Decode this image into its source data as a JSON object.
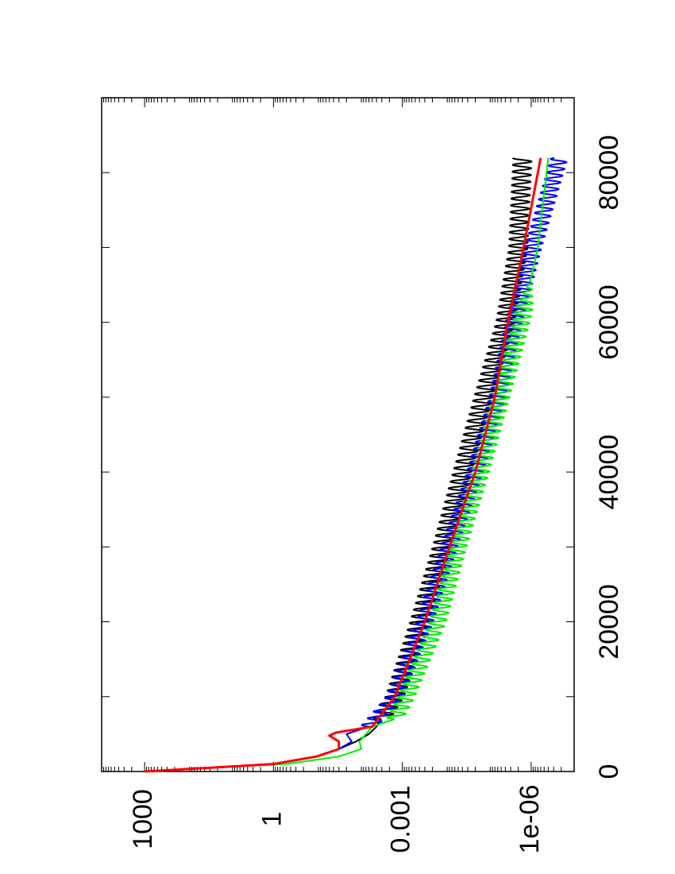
{
  "chart_data": {
    "type": "line",
    "orientation": "rotated-90-clockwise",
    "title": "",
    "xlabel": "",
    "ylabel": "",
    "xlim": [
      0,
      90000
    ],
    "ylim_log10": [
      -7,
      4
    ],
    "yscale": "log",
    "x_ticks": [
      {
        "value": 0,
        "label": "0"
      },
      {
        "value": 20000,
        "label": "20000"
      },
      {
        "value": 40000,
        "label": "40000"
      },
      {
        "value": 60000,
        "label": "60000"
      },
      {
        "value": 80000,
        "label": "80000"
      }
    ],
    "x_minor_ticks": [
      10000,
      30000,
      50000,
      70000
    ],
    "y_ticks": [
      {
        "value": 1000,
        "label": "1000"
      },
      {
        "value": 1,
        "label": "1"
      },
      {
        "value": 0.001,
        "label": "0.001"
      },
      {
        "value": 1e-06,
        "label": "1e-06"
      }
    ],
    "grid": false,
    "legend": "none",
    "series": [
      {
        "color": "#000000",
        "x": [
          0,
          500,
          1000,
          2000,
          3000,
          4000,
          5000,
          6000,
          10000,
          20000,
          30000,
          40000,
          50000,
          60000,
          70000,
          82000
        ],
        "y": [
          1000,
          30,
          1,
          0.1,
          0.03,
          0.012,
          0.006,
          0.004,
          0.0015,
          0.0004,
          0.00012,
          4e-05,
          1.3e-05,
          4e-06,
          2e-06,
          1.6e-06
        ],
        "oscillation": {
          "start_x": 7000,
          "period_x": 900,
          "amp_log10": 0.22
        }
      },
      {
        "color": "#0000ff",
        "x": [
          0,
          500,
          1000,
          2000,
          3000,
          4000,
          5000,
          6000,
          10000,
          20000,
          30000,
          40000,
          50000,
          60000,
          70000,
          82000
        ],
        "y": [
          1000,
          30,
          1,
          0.1,
          0.03,
          0.015,
          0.02,
          0.006,
          0.0015,
          0.0003,
          8e-05,
          2e-05,
          6e-06,
          2.5e-06,
          9e-07,
          2.2e-07
        ],
        "oscillation": {
          "start_x": 6000,
          "period_x": 900,
          "amp_log10": 0.2
        }
      },
      {
        "color": "#00ee00",
        "x": [
          0,
          500,
          1000,
          2000,
          3000,
          4000,
          5000,
          6000,
          7000,
          10000,
          20000,
          30000,
          40000,
          50000,
          60000,
          70000,
          82000
        ],
        "y": [
          1000,
          30,
          0.5,
          0.03,
          0.009,
          0.01,
          0.007,
          0.005,
          0.0015,
          0.0008,
          0.00015,
          5e-05,
          1.5e-05,
          5e-06,
          1.7e-06,
          7e-07,
          4e-07
        ],
        "oscillation": {
          "start_x": 7000,
          "period_x": 900,
          "amp_log10": 0.2,
          "end_x": 62000
        }
      },
      {
        "color": "#ff0000",
        "x": [
          0,
          500,
          1000,
          2000,
          3000,
          4000,
          4800,
          5200,
          6000,
          10000,
          20000,
          30000,
          40000,
          50000,
          60000,
          70000,
          82000
        ],
        "y": [
          1000,
          30,
          1,
          0.1,
          0.03,
          0.03,
          0.05,
          0.035,
          0.005,
          0.0015,
          0.0003,
          8e-05,
          2e-05,
          7e-06,
          3.5e-06,
          1.5e-06,
          6e-07
        ]
      }
    ]
  }
}
